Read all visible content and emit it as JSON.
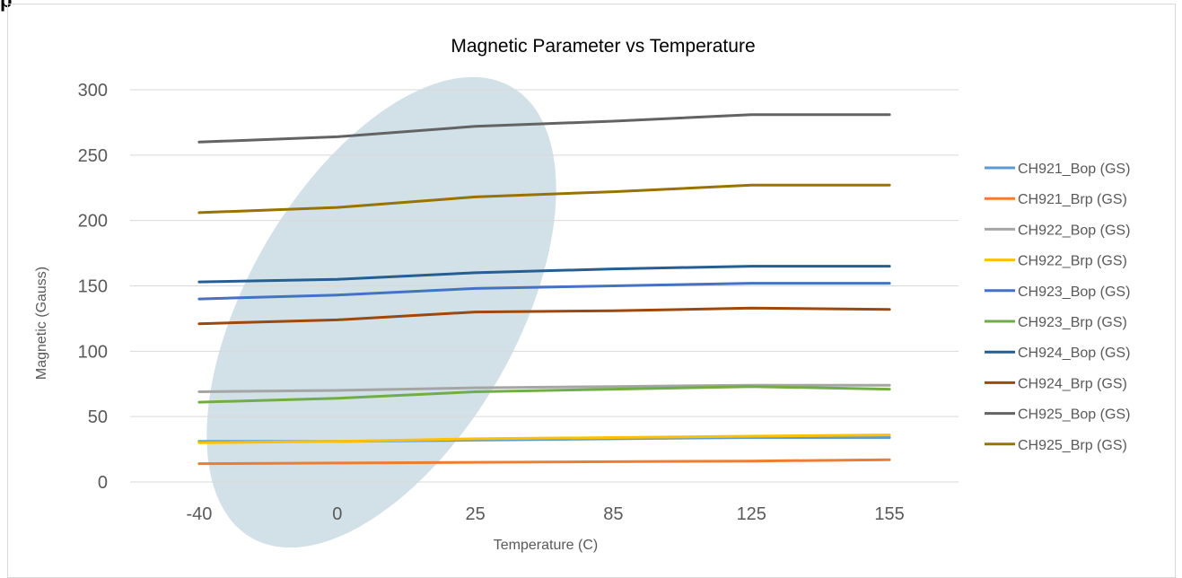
{
  "page": {
    "header_fragment": "p"
  },
  "colors": {
    "watermark_ellipse": "#c9dce3",
    "gridline": "#d9d9d9",
    "axis_text": "#595959",
    "title_text": "#000000"
  },
  "chart_data": {
    "type": "line",
    "title": "Magnetic Parameter vs Temperature",
    "xlabel": "Temperature (C)",
    "ylabel": "Magnetic (Gauss)",
    "categories": [
      "-40",
      "0",
      "25",
      "85",
      "125",
      "155"
    ],
    "ylim": [
      0,
      300
    ],
    "yticks": [
      0,
      50,
      100,
      150,
      200,
      250,
      300
    ],
    "grid": "horizontal",
    "legend_position": "right",
    "series": [
      {
        "name": "CH921_Bop (GS)",
        "color": "#5b9bd5",
        "values": [
          31,
          31,
          32,
          33,
          34,
          34
        ]
      },
      {
        "name": "CH921_Brp (GS)",
        "color": "#ed7d31",
        "values": [
          14,
          14.5,
          15,
          15.5,
          16,
          17
        ]
      },
      {
        "name": "CH922_Bop (GS)",
        "color": "#a5a5a5",
        "values": [
          69,
          70,
          72,
          73,
          74,
          74
        ]
      },
      {
        "name": "CH922_Brp (GS)",
        "color": "#ffc000",
        "values": [
          30,
          31,
          33,
          34,
          35,
          36
        ]
      },
      {
        "name": "CH923_Bop (GS)",
        "color": "#4472c4",
        "values": [
          140,
          143,
          148,
          150,
          152,
          152
        ]
      },
      {
        "name": "CH923_Brp (GS)",
        "color": "#70ad47",
        "values": [
          61,
          64,
          69,
          71,
          73,
          71
        ]
      },
      {
        "name": "CH924_Bop (GS)",
        "color": "#255e91",
        "values": [
          153,
          155,
          160,
          163,
          165,
          165
        ]
      },
      {
        "name": "CH924_Brp (GS)",
        "color": "#9e480e",
        "values": [
          121,
          124,
          130,
          131,
          133,
          132
        ]
      },
      {
        "name": "CH925_Bop (GS)",
        "color": "#636363",
        "values": [
          260,
          264,
          272,
          276,
          281,
          281
        ]
      },
      {
        "name": "CH925_Brp (GS)",
        "color": "#997300",
        "values": [
          206,
          210,
          218,
          222,
          227,
          227
        ]
      }
    ]
  }
}
